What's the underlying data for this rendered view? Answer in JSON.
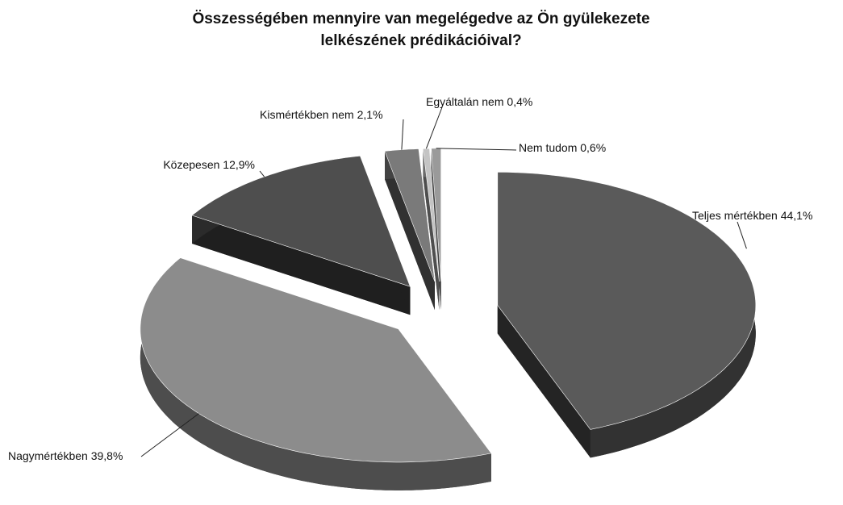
{
  "chart_data": {
    "type": "pie3d",
    "title": "Összességében mennyire van megelégedve az Ön gyülekezete lelkészének prédikációival?",
    "categories": [
      "Teljes mértékben",
      "Nagymértékben",
      "Közepesen",
      "Kismértékben nem",
      "Egyáltalán nem",
      "Nem tudom"
    ],
    "values": [
      44.1,
      39.8,
      12.9,
      2.1,
      0.4,
      0.6
    ],
    "value_labels": [
      "44,1%",
      "39,8%",
      "12,9%",
      "2,1%",
      "0,4%",
      "0,6%"
    ],
    "colors": [
      "#5a5a5a",
      "#8c8c8c",
      "#4e4e4e",
      "#7a7a7a",
      "#c4c4c4",
      "#9a9a9a"
    ],
    "exploded": true
  }
}
